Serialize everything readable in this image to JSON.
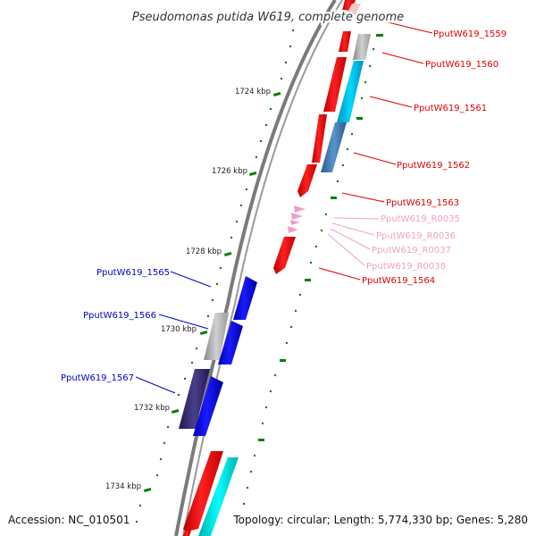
{
  "title": "Pseudomonas putida W619, complete genome",
  "accession": "Accession: NC_010501",
  "topology": "Topology: circular; Length: 5,774,330 bp; Genes: 5,280",
  "kbp_labels": [
    {
      "key": "k1724",
      "text": "1724 kbp"
    },
    {
      "key": "k1726",
      "text": "1726 kbp"
    },
    {
      "key": "k1728",
      "text": "1728 kbp"
    },
    {
      "key": "k1730",
      "text": "1730 kbp"
    },
    {
      "key": "k1732",
      "text": "1732 kbp"
    },
    {
      "key": "k1734",
      "text": "1734 kbp"
    }
  ],
  "gene_labels": {
    "g1559": "PputW619_1559",
    "g1560": "PputW619_1560",
    "g1561": "PputW619_1561",
    "g1562": "PputW619_1562",
    "g1563": "PputW619_1563",
    "r0035": "PputW619_R0035",
    "r0036": "PputW619_R0036",
    "r0037": "PputW619_R0037",
    "r0038": "PputW619_R0038",
    "g1564": "PputW619_1564",
    "g1565": "PputW619_1565",
    "g1566": "PputW619_1566",
    "g1567": "PputW619_1567"
  },
  "colors": {
    "forward_gene": "#ff0000",
    "reverse_gene": "#0000ee",
    "rna": "#f0a0c8",
    "tick": "#008000",
    "backbone": "#808080"
  }
}
